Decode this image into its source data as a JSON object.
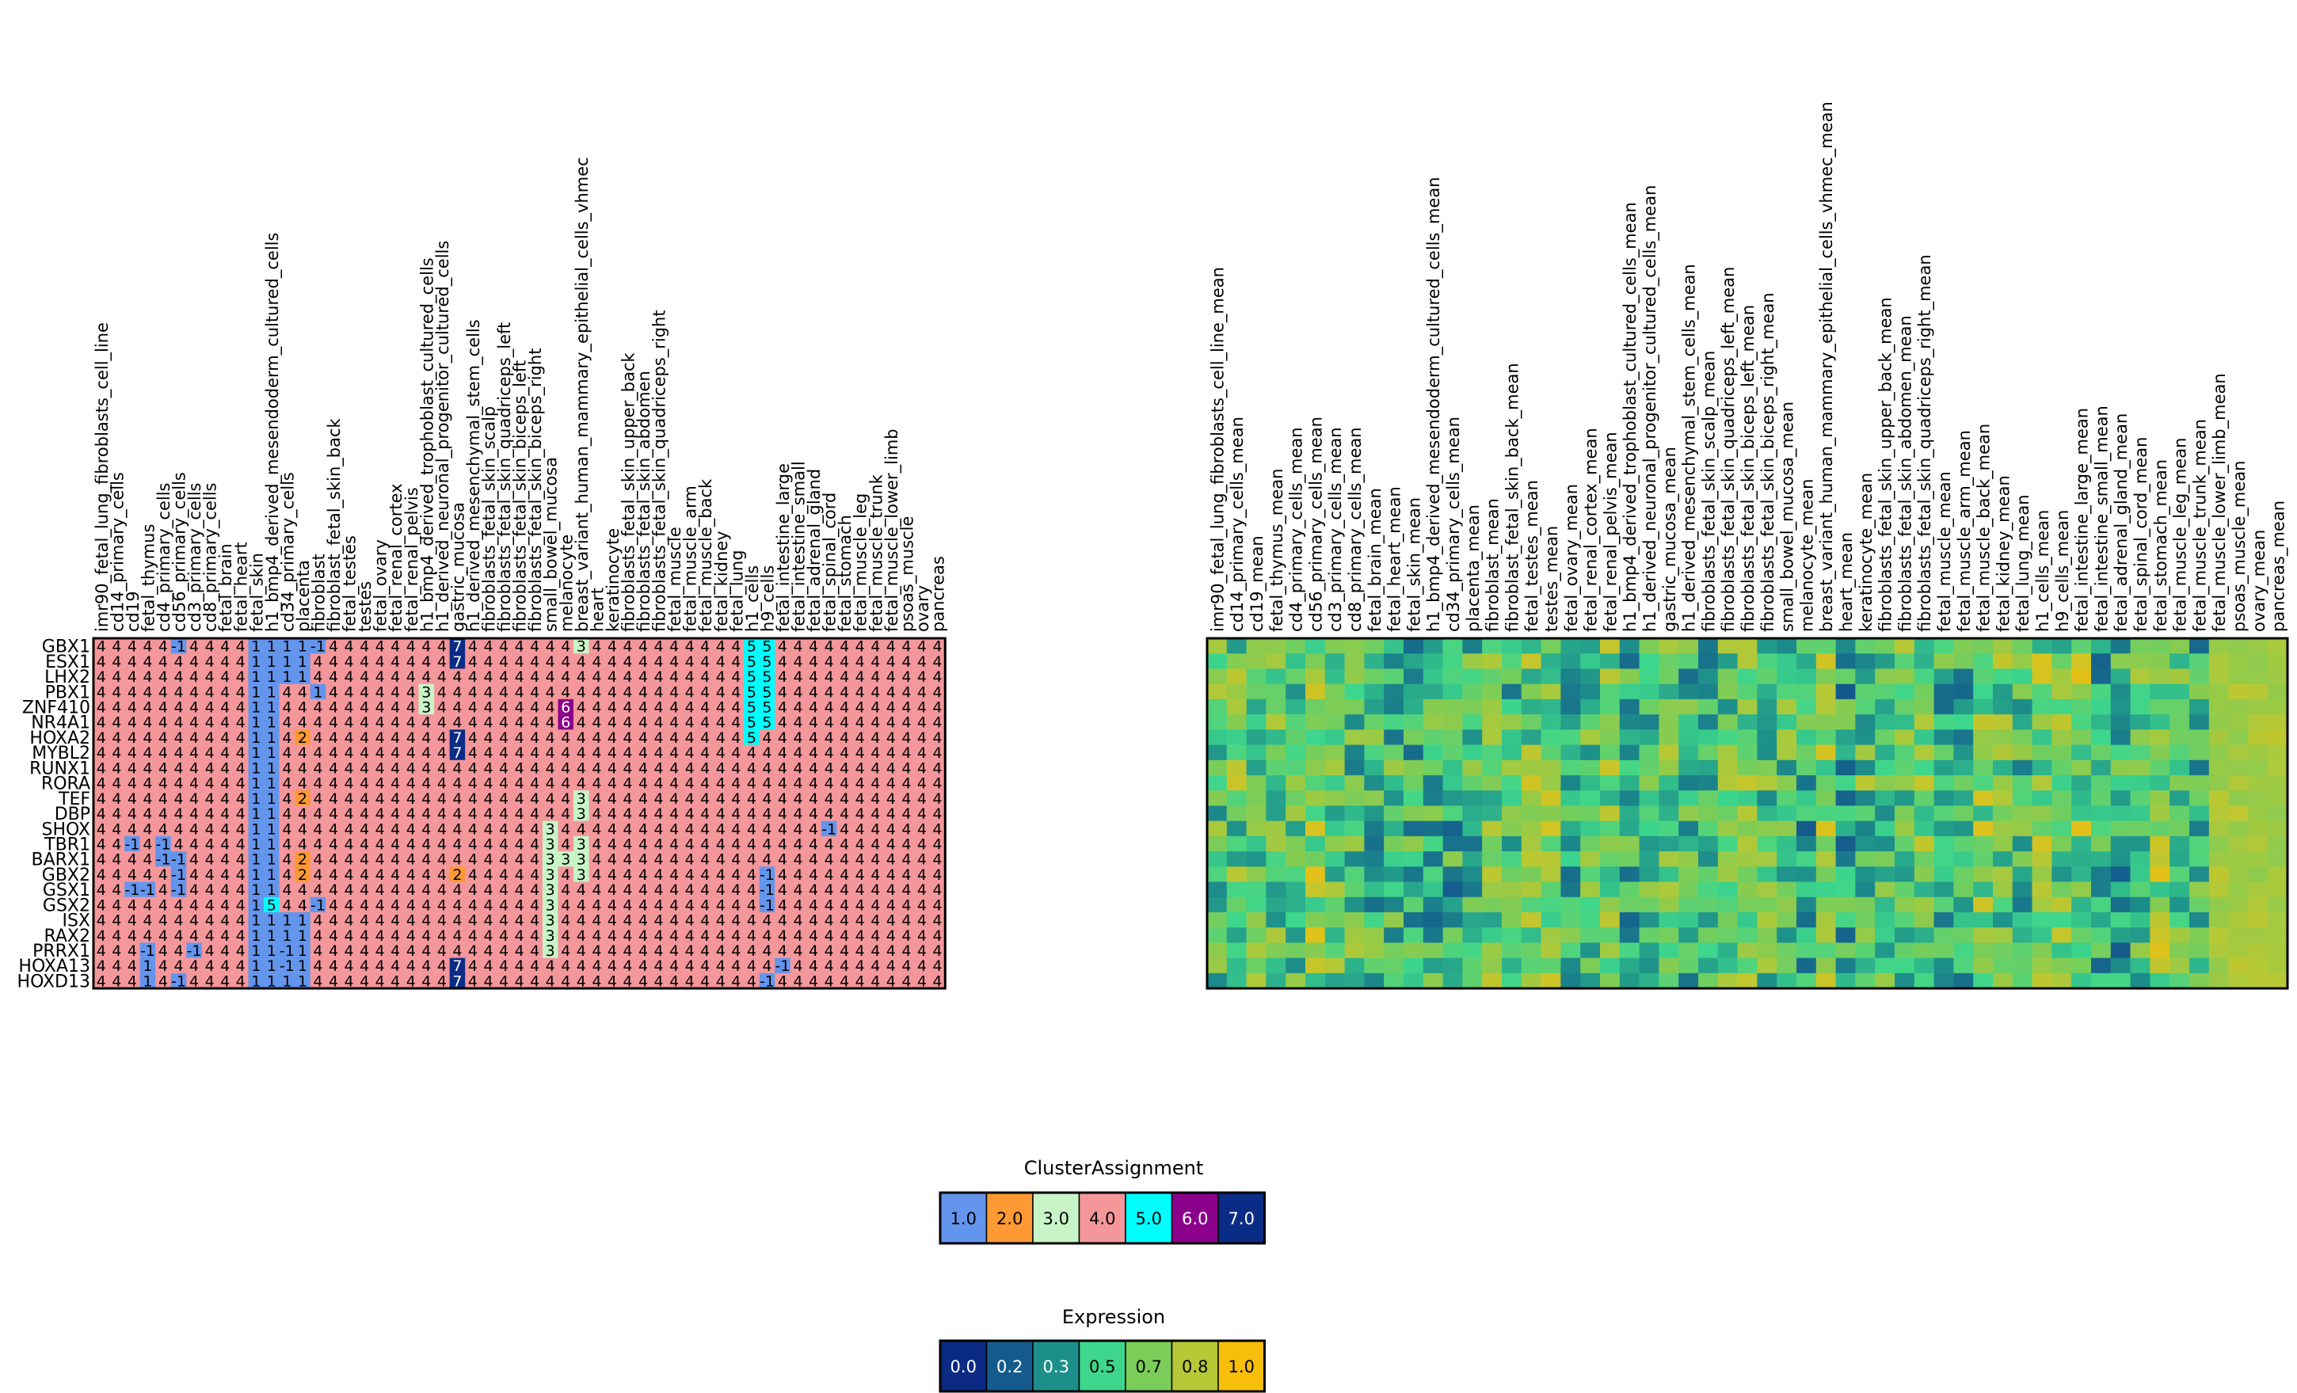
{
  "genes": [
    "GBX1",
    "ESX1",
    "LHX2",
    "PBX1",
    "ZNF410",
    "NR4A1",
    "HOXA2",
    "MYBL2",
    "RUNX1",
    "RORA",
    "TEF",
    "DBP",
    "SHOX",
    "TBR1",
    "BARX1",
    "GBX2",
    "GSX1",
    "GSX2",
    "ISX",
    "RAX2",
    "PRRX1",
    "HOXA13",
    "HOXD13"
  ],
  "cluster_panel": {
    "columns": [
      "imr90_fetal_lung_fibroblasts_cell_line",
      "cd14_primary_cells",
      "cd19",
      "fetal_thymus",
      "cd4_primary_cells",
      "cd56_primary_cells",
      "cd3_primary_cells",
      "cd8_primary_cells",
      "fetal_brain",
      "fetal_heart",
      "fetal_skin",
      "h1_bmp4_derived_mesendoderm_cultured_cells",
      "cd34_primary_cells",
      "placenta",
      "fibroblast",
      "fibroblast_fetal_skin_back",
      "fetal_testes",
      "testes",
      "fetal_ovary",
      "fetal_renal_cortex",
      "fetal_renal_pelvis",
      "h1_bmp4_derived_trophoblast_cultured_cells",
      "h1_derived_neuronal_progenitor_cultured_cells",
      "gastric_mucosa",
      "h1_derived_mesenchymal_stem_cells",
      "fibroblasts_fetal_skin_scalp",
      "fibroblasts_fetal_skin_quadriceps_left",
      "fibroblasts_fetal_skin_biceps_left",
      "fibroblasts_fetal_skin_biceps_right",
      "small_bowel_mucosa",
      "melanocyte",
      "breast_variant_human_mammary_epithelial_cells_vhmec",
      "heart",
      "keratinocyte",
      "fibroblasts_fetal_skin_upper_back",
      "fibroblasts_fetal_skin_abdomen",
      "fibroblasts_fetal_skin_quadriceps_right",
      "fetal_muscle",
      "fetal_muscle_arm",
      "fetal_muscle_back",
      "fetal_kidney",
      "fetal_lung",
      "h1_cells",
      "h9_cells",
      "fetal_intestine_large",
      "fetal_intestine_small",
      "fetal_adrenal_gland",
      "fetal_spinal_cord",
      "fetal_stomach",
      "fetal_muscle_leg",
      "fetal_muscle_trunk",
      "fetal_muscle_lower_limb",
      "psoas_muscle",
      "ovary",
      "pancreas"
    ]
  },
  "expression_panel": {
    "columns": [
      "imr90_fetal_lung_fibroblasts_cell_line_mean",
      "cd14_primary_cells_mean",
      "cd19_mean",
      "fetal_thymus_mean",
      "cd4_primary_cells_mean",
      "cd56_primary_cells_mean",
      "cd3_primary_cells_mean",
      "cd8_primary_cells_mean",
      "fetal_brain_mean",
      "fetal_heart_mean",
      "fetal_skin_mean",
      "h1_bmp4_derived_mesendoderm_cultured_cells_mean",
      "cd34_primary_cells_mean",
      "placenta_mean",
      "fibroblast_mean",
      "fibroblast_fetal_skin_back_mean",
      "fetal_testes_mean",
      "testes_mean",
      "fetal_ovary_mean",
      "fetal_renal_cortex_mean",
      "fetal_renal_pelvis_mean",
      "h1_bmp4_derived_trophoblast_cultured_cells_mean",
      "h1_derived_neuronal_progenitor_cultured_cells_mean",
      "gastric_mucosa_mean",
      "h1_derived_mesenchymal_stem_cells_mean",
      "fibroblasts_fetal_skin_scalp_mean",
      "fibroblasts_fetal_skin_quadriceps_left_mean",
      "fibroblasts_fetal_skin_biceps_left_mean",
      "fibroblasts_fetal_skin_biceps_right_mean",
      "small_bowel_mucosa_mean",
      "melanocyte_mean",
      "breast_variant_human_mammary_epithelial_cells_vhmec_mean",
      "heart_mean",
      "keratinocyte_mean",
      "fibroblasts_fetal_skin_upper_back_mean",
      "fibroblasts_fetal_skin_abdomen_mean",
      "fibroblasts_fetal_skin_quadriceps_right_mean",
      "fetal_muscle_mean",
      "fetal_muscle_arm_mean",
      "fetal_muscle_back_mean",
      "fetal_kidney_mean",
      "fetal_lung_mean",
      "h1_cells_mean",
      "h9_cells_mean",
      "fetal_intestine_large_mean",
      "fetal_intestine_small_mean",
      "fetal_adrenal_gland_mean",
      "fetal_spinal_cord_mean",
      "fetal_stomach_mean",
      "fetal_muscle_leg_mean",
      "fetal_muscle_trunk_mean",
      "fetal_muscle_lower_limb_mean",
      "psoas_muscle_mean",
      "ovary_mean",
      "pancreas_mean"
    ]
  },
  "chart_data": [
    {
      "type": "heatmap",
      "panel": "cluster-assignment",
      "default_value": 4,
      "value_labels": {
        "1": "1",
        "2": "2",
        "3": "3",
        "4": "4",
        "5": "5",
        "6": "6",
        "7": "7",
        "-1": "-1"
      },
      "overrides": {
        "GBX1": {
          "5": -1,
          "10": 1,
          "11": 1,
          "12": 1,
          "13": 1,
          "14": -1,
          "23": 7,
          "31": 3,
          "42": 5,
          "43": 5
        },
        "ESX1": {
          "10": 1,
          "11": 1,
          "12": 1,
          "13": 1,
          "23": 7,
          "42": 5,
          "43": 5
        },
        "LHX2": {
          "10": 1,
          "11": 1,
          "12": 1,
          "13": 1,
          "42": 5,
          "43": 5
        },
        "PBX1": {
          "10": 1,
          "11": 1,
          "14": 1,
          "21": 3,
          "42": 5,
          "43": 5
        },
        "ZNF410": {
          "10": 1,
          "11": 1,
          "21": 3,
          "30": 6,
          "42": 5,
          "43": 5
        },
        "NR4A1": {
          "10": 1,
          "11": 1,
          "30": 6,
          "42": 5,
          "43": 5
        },
        "HOXA2": {
          "10": 1,
          "11": 1,
          "13": 2,
          "23": 7,
          "42": 5
        },
        "MYBL2": {
          "10": 1,
          "11": 1,
          "23": 7
        },
        "RUNX1": {
          "10": 1,
          "11": 1
        },
        "RORA": {
          "10": 1,
          "11": 1
        },
        "TEF": {
          "10": 1,
          "11": 1,
          "13": 2,
          "31": 3
        },
        "DBP": {
          "10": 1,
          "11": 1,
          "31": 3
        },
        "SHOX": {
          "10": 1,
          "11": 1,
          "29": 3,
          "47": -1
        },
        "TBR1": {
          "2": -1,
          "4": -1,
          "10": 1,
          "11": 1,
          "29": 3,
          "31": 3
        },
        "BARX1": {
          "4": -1,
          "5": -1,
          "10": 1,
          "11": 1,
          "13": 2,
          "29": 3,
          "30": 3,
          "31": 3
        },
        "GBX2": {
          "5": -1,
          "10": 1,
          "11": 1,
          "13": 2,
          "23": 2,
          "29": 3,
          "31": 3,
          "43": -1
        },
        "GSX1": {
          "2": -1,
          "3": -1,
          "5": -1,
          "10": 1,
          "11": 1,
          "29": 3,
          "43": -1
        },
        "GSX2": {
          "10": 1,
          "11": 5,
          "14": -1,
          "29": 3,
          "43": -1
        },
        "ISX": {
          "10": 1,
          "11": 1,
          "12": 1,
          "13": 1,
          "29": 3
        },
        "RAX2": {
          "10": 1,
          "11": 1,
          "12": 1,
          "13": 1,
          "29": 3
        },
        "PRRX1": {
          "3": -1,
          "6": -1,
          "10": 1,
          "11": 1,
          "12": -1,
          "13": 1,
          "29": 3
        },
        "HOXA13": {
          "3": 1,
          "10": 1,
          "11": 1,
          "12": -1,
          "13": 1,
          "23": 7,
          "44": -1
        },
        "HOXD13": {
          "3": 1,
          "5": -1,
          "10": 1,
          "11": 1,
          "12": 1,
          "13": 1,
          "23": 7,
          "43": -1
        }
      },
      "legend": {
        "title": "ClusterAssignment",
        "labels": [
          "1.0",
          "2.0",
          "3.0",
          "4.0",
          "5.0",
          "6.0",
          "7.0"
        ],
        "colors": [
          "#6495ed",
          "#ff9933",
          "#c7f5c7",
          "#f4979b",
          "#00ffff",
          "#8b008b",
          "#0b2c86"
        ]
      },
      "colors": {
        "1": "#6495ed",
        "2": "#ff9933",
        "3": "#c7f5c7",
        "4": "#f4979b",
        "5": "#00ffff",
        "6": "#8b008b",
        "7": "#0b2c86",
        "-1": "#6495ed"
      }
    },
    {
      "type": "heatmap",
      "panel": "expression",
      "value_range": [
        0.0,
        1.0
      ],
      "legend": {
        "title": "Expression",
        "labels": [
          "0.0",
          "0.2",
          "0.3",
          "0.5",
          "0.7",
          "0.8",
          "1.0"
        ],
        "colors": [
          "#0a2a84",
          "#145a8c",
          "#1d8f8a",
          "#3dd68c",
          "#7acd58",
          "#b6c835",
          "#f7be0a"
        ]
      }
    }
  ]
}
